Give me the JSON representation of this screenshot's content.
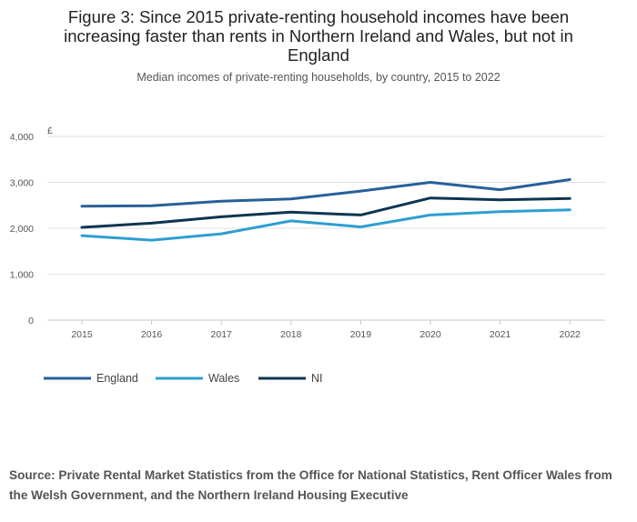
{
  "title": "Figure 3: Since 2015 private-renting household incomes have been increasing faster than rents in Northern Ireland and Wales, but not in England",
  "subtitle": "Median incomes of private-renting households, by country, 2015 to 2022",
  "source": "Source: Private Rental Market Statistics from the  Office for National Statistics, Rent Officer Wales from the  Welsh Government, and the Northern Ireland Housing Executive",
  "chart_data": {
    "type": "line",
    "title": "Figure 3: Since 2015 private-renting household incomes have been increasing faster than rents in Northern Ireland and Wales, but not in England",
    "subtitle": "Median incomes of private-renting households, by country, 2015 to 2022",
    "ylabel": "£",
    "xlabel": "",
    "categories": [
      "2015",
      "2016",
      "2017",
      "2018",
      "2019",
      "2020",
      "2021",
      "2022"
    ],
    "ylim": [
      0,
      4000
    ],
    "yticks": [
      0,
      1000,
      2000,
      3000,
      4000
    ],
    "ytick_labels": [
      "0",
      "1,000",
      "2,000",
      "3,000",
      "4,000"
    ],
    "grid": true,
    "legend_position": "bottom-left",
    "series": [
      {
        "name": "England",
        "color": "#27609a",
        "values": [
          2480,
          2490,
          2590,
          2640,
          2810,
          3000,
          2840,
          3060
        ]
      },
      {
        "name": "Wales",
        "color": "#2e9fd1",
        "values": [
          1840,
          1740,
          1880,
          2160,
          2030,
          2290,
          2360,
          2400
        ]
      },
      {
        "name": "NI",
        "color": "#0e3550",
        "values": [
          2020,
          2110,
          2250,
          2350,
          2290,
          2660,
          2620,
          2650
        ]
      }
    ]
  }
}
